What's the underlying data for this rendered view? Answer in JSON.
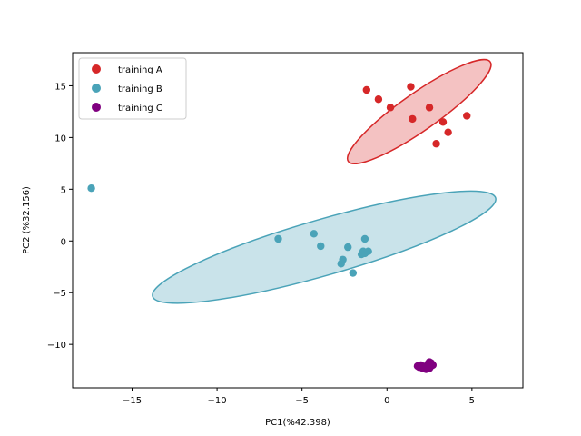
{
  "chart_data": {
    "type": "scatter",
    "title": "",
    "xlabel": "PC1(%42.398)",
    "ylabel": "PC2 (%32.156)",
    "xlim": [
      -18.5,
      8.0
    ],
    "ylim": [
      -14.2,
      18.2
    ],
    "xticks": [
      -15,
      -10,
      -5,
      0,
      5
    ],
    "yticks": [
      -10,
      -5,
      0,
      5,
      10,
      15
    ],
    "xtick_labels": [
      "−15",
      "−10",
      "−5",
      "0",
      "5"
    ],
    "ytick_labels": [
      "−10",
      "−5",
      "0",
      "5",
      "10",
      "15"
    ],
    "grid": false,
    "legend_position": "top-left",
    "series": [
      {
        "name": "training A",
        "color": "#d62728",
        "ellipse_fill": "#f4c2c2",
        "points": [
          [
            -1.2,
            14.6
          ],
          [
            -0.5,
            13.7
          ],
          [
            0.2,
            12.9
          ],
          [
            1.4,
            14.9
          ],
          [
            1.5,
            11.8
          ],
          [
            2.5,
            12.9
          ],
          [
            3.3,
            11.5
          ],
          [
            3.6,
            10.5
          ],
          [
            2.9,
            9.4
          ],
          [
            4.7,
            12.1
          ]
        ],
        "ellipse": {
          "cx": 1.9,
          "cy": 12.5,
          "rx": 5.1,
          "ry": 1.8,
          "angle_deg": -35
        }
      },
      {
        "name": "training B",
        "color": "#4aa3b8",
        "ellipse_fill": "#c9e3ea",
        "points": [
          [
            -17.4,
            5.1
          ],
          [
            -6.4,
            0.2
          ],
          [
            -4.3,
            0.7
          ],
          [
            -3.9,
            -0.5
          ],
          [
            -2.3,
            -0.6
          ],
          [
            -1.3,
            0.2
          ],
          [
            -1.4,
            -1.0
          ],
          [
            -1.1,
            -1.0
          ],
          [
            -1.3,
            -1.2
          ],
          [
            -1.5,
            -1.3
          ],
          [
            -2.6,
            -1.8
          ],
          [
            -2.7,
            -2.2
          ],
          [
            -2.0,
            -3.1
          ]
        ],
        "ellipse": {
          "cx": -3.7,
          "cy": -0.6,
          "rx": 10.5,
          "ry": 2.7,
          "angle_deg": -16
        }
      },
      {
        "name": "training C",
        "color": "#800080",
        "ellipse_fill": "",
        "points": [
          [
            1.8,
            -12.1
          ],
          [
            2.0,
            -12.0
          ],
          [
            2.2,
            -12.2
          ],
          [
            2.4,
            -11.9
          ],
          [
            2.5,
            -12.3
          ],
          [
            2.6,
            -11.8
          ],
          [
            2.3,
            -12.4
          ],
          [
            2.1,
            -12.3
          ],
          [
            1.9,
            -12.2
          ],
          [
            2.6,
            -12.1
          ],
          [
            2.7,
            -12.0
          ],
          [
            2.5,
            -11.7
          ]
        ],
        "ellipse": null
      }
    ]
  }
}
